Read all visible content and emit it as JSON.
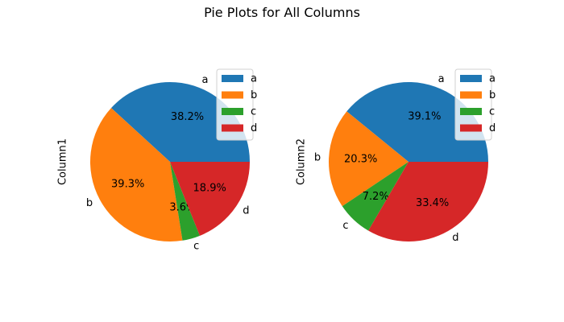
{
  "title": "Pie Plots for All Columns",
  "colors": {
    "a": "#1f77b4",
    "b": "#ff7f0e",
    "c": "#2ca02c",
    "d": "#d62728"
  },
  "chart_data": [
    {
      "type": "pie",
      "ylabel": "Column1",
      "labels": [
        "a",
        "b",
        "c",
        "d"
      ],
      "values": [
        38.2,
        39.3,
        3.6,
        18.9
      ],
      "pct_labels": [
        "38.2%",
        "39.3%",
        "3.6%",
        "18.9%"
      ],
      "legend": {
        "entries": [
          "a",
          "b",
          "c",
          "d"
        ],
        "placement": "upper-right"
      }
    },
    {
      "type": "pie",
      "ylabel": "Column2",
      "labels": [
        "a",
        "b",
        "c",
        "d"
      ],
      "values": [
        39.1,
        20.3,
        7.2,
        33.4
      ],
      "pct_labels": [
        "39.1%",
        "20.3%",
        "7.2%",
        "33.4%"
      ],
      "legend": {
        "entries": [
          "a",
          "b",
          "c",
          "d"
        ],
        "placement": "upper-right"
      }
    }
  ]
}
